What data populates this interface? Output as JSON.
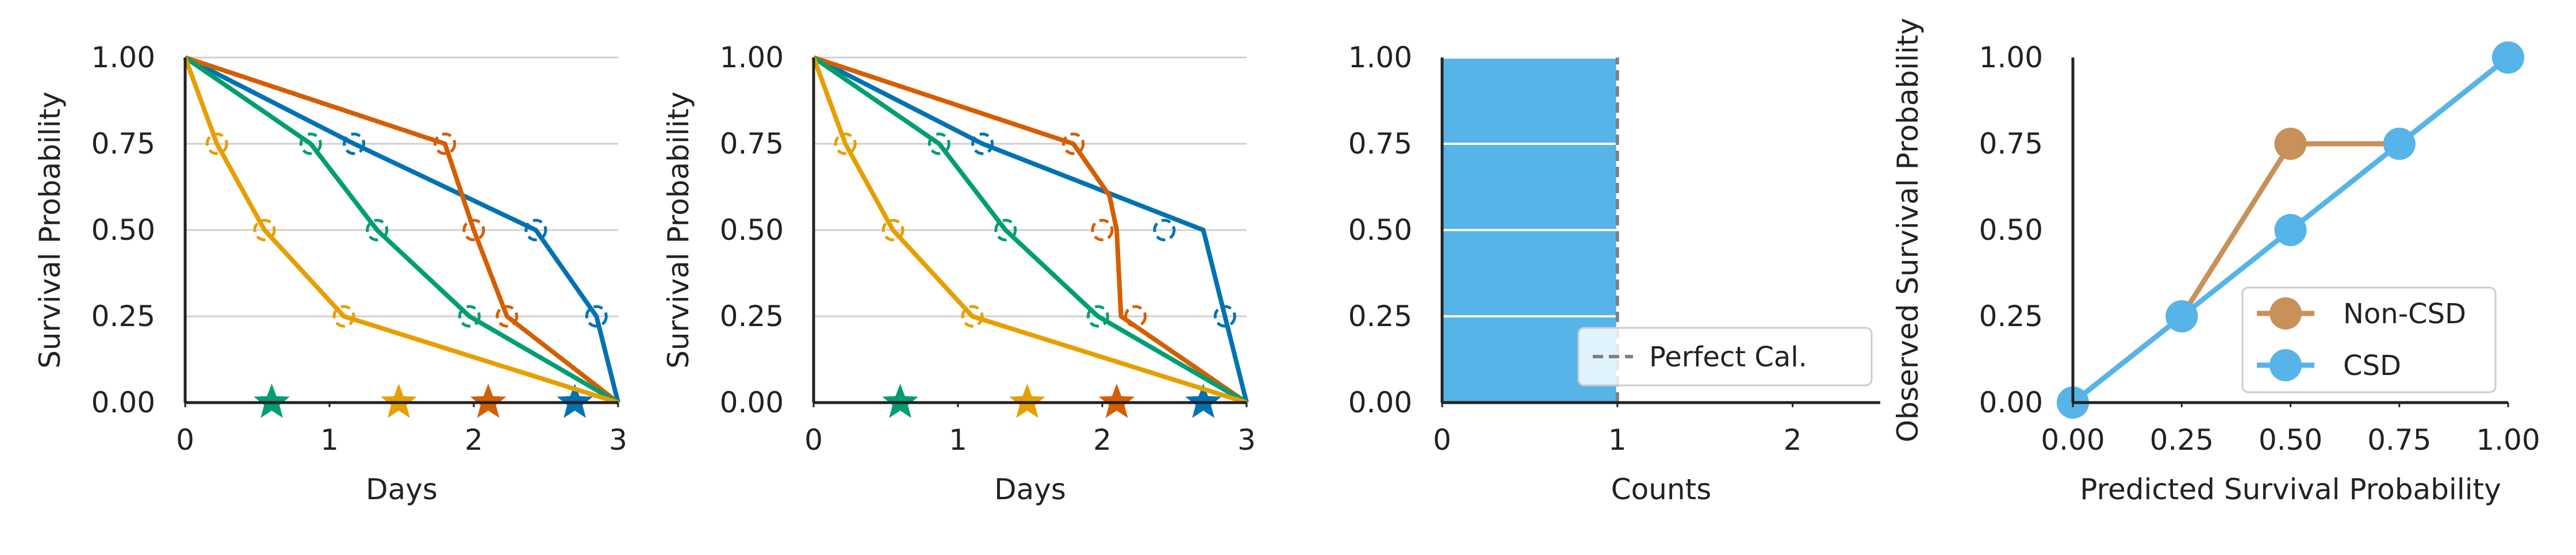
{
  "figure": {
    "background": "#ffffff"
  },
  "chart_data": [
    {
      "type": "line",
      "xlabel": "Days",
      "ylabel": "Survival Probability",
      "xlim": [
        0,
        3
      ],
      "ylim": [
        0,
        1
      ],
      "xticks": [
        "0",
        "1",
        "2",
        "3"
      ],
      "yticks": [
        "0.00",
        "0.25",
        "0.50",
        "0.75",
        "1.00"
      ],
      "grid": "horizontal",
      "series": [
        {
          "color": "#0072B2",
          "curve": [
            [
              0,
              1
            ],
            [
              1.17,
              0.75
            ],
            [
              2.43,
              0.5
            ],
            [
              2.85,
              0.25
            ],
            [
              3,
              0
            ]
          ],
          "circles": [
            [
              1.17,
              0.75
            ],
            [
              2.43,
              0.5
            ],
            [
              2.85,
              0.25
            ]
          ],
          "star": 2.7
        },
        {
          "color": "#D55E00",
          "curve": [
            [
              0,
              1
            ],
            [
              1.8,
              0.75
            ],
            [
              2.0,
              0.5
            ],
            [
              2.23,
              0.25
            ],
            [
              3,
              0
            ]
          ],
          "circles": [
            [
              1.8,
              0.75
            ],
            [
              2.0,
              0.5
            ],
            [
              2.23,
              0.25
            ]
          ],
          "star": 2.1
        },
        {
          "color": "#009E73",
          "curve": [
            [
              0,
              1
            ],
            [
              0.87,
              0.75
            ],
            [
              1.33,
              0.5
            ],
            [
              1.97,
              0.25
            ],
            [
              3,
              0
            ]
          ],
          "circles": [
            [
              0.87,
              0.75
            ],
            [
              1.33,
              0.5
            ],
            [
              1.97,
              0.25
            ]
          ],
          "star": 0.6
        },
        {
          "color": "#E69F00",
          "curve": [
            [
              0,
              1
            ],
            [
              0.22,
              0.75
            ],
            [
              0.55,
              0.5
            ],
            [
              1.1,
              0.25
            ],
            [
              3,
              0
            ]
          ],
          "circles": [
            [
              0.22,
              0.75
            ],
            [
              0.55,
              0.5
            ],
            [
              1.1,
              0.25
            ]
          ],
          "star": 1.48
        }
      ]
    },
    {
      "type": "line",
      "xlabel": "Days",
      "ylabel": "Survival Probability",
      "xlim": [
        0,
        3
      ],
      "ylim": [
        0,
        1
      ],
      "xticks": [
        "0",
        "1",
        "2",
        "3"
      ],
      "yticks": [
        "0.00",
        "0.25",
        "0.50",
        "0.75",
        "1.00"
      ],
      "grid": "horizontal",
      "series": [
        {
          "color": "#0072B2",
          "curve": [
            [
              0,
              1
            ],
            [
              1.17,
              0.75
            ],
            [
              2.7,
              0.5
            ],
            [
              3,
              0
            ]
          ],
          "circles": [
            [
              1.17,
              0.75
            ],
            [
              2.43,
              0.5
            ],
            [
              2.85,
              0.25
            ]
          ],
          "star": 2.7
        },
        {
          "color": "#D55E00",
          "curve": [
            [
              0,
              1
            ],
            [
              1.8,
              0.75
            ],
            [
              2.05,
              0.6
            ],
            [
              2.1,
              0.5
            ],
            [
              2.13,
              0.25
            ],
            [
              3,
              0
            ]
          ],
          "circles": [
            [
              1.8,
              0.75
            ],
            [
              2.0,
              0.5
            ],
            [
              2.23,
              0.25
            ]
          ],
          "star": 2.1
        },
        {
          "color": "#009E73",
          "curve": [
            [
              0,
              1
            ],
            [
              0.87,
              0.75
            ],
            [
              1.33,
              0.5
            ],
            [
              1.97,
              0.25
            ],
            [
              3,
              0
            ]
          ],
          "circles": [
            [
              0.87,
              0.75
            ],
            [
              1.33,
              0.5
            ],
            [
              1.97,
              0.25
            ]
          ],
          "star": 0.6
        },
        {
          "color": "#E69F00",
          "curve": [
            [
              0,
              1
            ],
            [
              0.22,
              0.75
            ],
            [
              0.55,
              0.5
            ],
            [
              1.1,
              0.25
            ],
            [
              3,
              0
            ]
          ],
          "circles": [
            [
              0.22,
              0.75
            ],
            [
              0.55,
              0.5
            ],
            [
              1.1,
              0.25
            ]
          ],
          "star": 1.48
        }
      ]
    },
    {
      "type": "bar",
      "orientation": "horizontal",
      "xlabel": "Counts",
      "ylabel": "",
      "xlim": [
        0,
        2.5
      ],
      "ylim": [
        0,
        1
      ],
      "xticks": [
        "0",
        "1",
        "2"
      ],
      "yticks": [
        "0.00",
        "0.25",
        "0.50",
        "0.75",
        "1.00"
      ],
      "bins": [
        {
          "from": 0,
          "to": 0.25,
          "count": 1
        },
        {
          "from": 0.25,
          "to": 0.5,
          "count": 1
        },
        {
          "from": 0.5,
          "to": 0.75,
          "count": 1
        },
        {
          "from": 0.75,
          "to": 1.0,
          "count": 1
        }
      ],
      "bar_color": "#56B4E9",
      "reference_line": {
        "x": 1,
        "label": "Perfect Cal.",
        "color": "#808080"
      },
      "legend": {
        "placement": "bottom-right"
      }
    },
    {
      "type": "line",
      "xlabel": "Predicted Survival Probability",
      "ylabel": "Observed Survival Probability",
      "xlim": [
        0,
        1
      ],
      "ylim": [
        0,
        1
      ],
      "xticks": [
        "0.00",
        "0.25",
        "0.50",
        "0.75",
        "1.00"
      ],
      "yticks": [
        "0.00",
        "0.25",
        "0.50",
        "0.75",
        "1.00"
      ],
      "series": [
        {
          "name": "Non-CSD",
          "color": "#C8915A",
          "points": [
            [
              0,
              0
            ],
            [
              0.25,
              0.25
            ],
            [
              0.5,
              0.75
            ],
            [
              0.75,
              0.75
            ],
            [
              1,
              1
            ]
          ]
        },
        {
          "name": "CSD",
          "color": "#56B4E9",
          "points": [
            [
              0,
              0
            ],
            [
              0.25,
              0.25
            ],
            [
              0.5,
              0.5
            ],
            [
              0.75,
              0.75
            ],
            [
              1,
              1
            ]
          ]
        }
      ],
      "legend": {
        "placement": "lower-right"
      }
    }
  ]
}
